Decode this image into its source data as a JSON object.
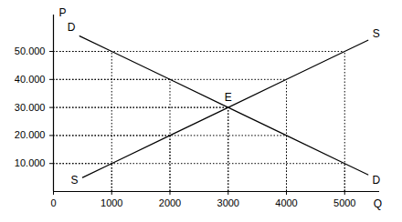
{
  "chart_data": {
    "type": "line",
    "x_label": "Q",
    "y_label": "P",
    "xlim": [
      0,
      5600
    ],
    "ylim": [
      0,
      63000
    ],
    "xticks": [
      0,
      1000,
      2000,
      3000,
      4000,
      5000
    ],
    "yticks": [
      {
        "value": 10000,
        "label": "10.000"
      },
      {
        "value": 20000,
        "label": "20.000"
      },
      {
        "value": 30000,
        "label": "30.000"
      },
      {
        "value": 40000,
        "label": "40.000"
      },
      {
        "value": 50000,
        "label": "50.000"
      }
    ],
    "grid": false,
    "series": [
      {
        "name": "D",
        "color": "#000000",
        "x": [
          450,
          1000,
          2000,
          3000,
          4000,
          5000,
          5400
        ],
        "values": [
          55500,
          50000,
          40000,
          30000,
          20000,
          10000,
          6000
        ]
      },
      {
        "name": "S",
        "color": "#000000",
        "x": [
          500,
          1000,
          2000,
          3000,
          4000,
          5000,
          5400
        ],
        "values": [
          5000,
          10000,
          20000,
          30000,
          40000,
          50000,
          54000
        ]
      }
    ],
    "annotations": [
      {
        "text": "E",
        "x": 3000,
        "y": 30000
      }
    ]
  }
}
